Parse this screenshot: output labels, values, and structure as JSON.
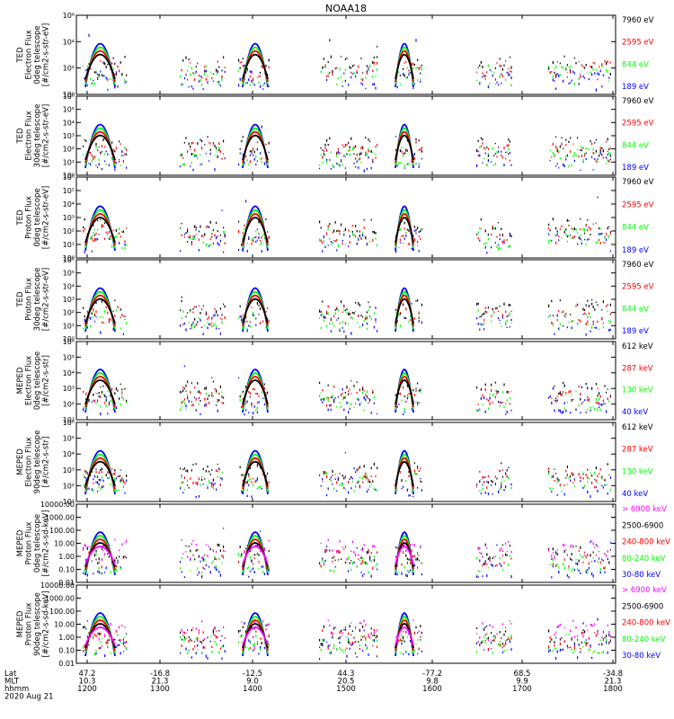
{
  "title": "NOAA18",
  "colors": {
    "blue": "#0000ff",
    "red": "#ff0000",
    "green": "#00ff00",
    "black": "#000000",
    "magenta": "#ff00ff"
  },
  "time_axis": {
    "labels": [
      "Lat",
      "MLT",
      "hhmm",
      "2020 Aug 21"
    ],
    "ticks": [
      {
        "lat": "47.2",
        "mlt": "10.3",
        "hhmm": "1200"
      },
      {
        "lat": "-16.8",
        "mlt": "21.3",
        "hhmm": "1300"
      },
      {
        "lat": "-12.5",
        "mlt": "9.0",
        "hhmm": "1400"
      },
      {
        "lat": "44.3",
        "mlt": "20.5",
        "hhmm": "1500"
      },
      {
        "lat": "-77.2",
        "mlt": "9.8",
        "hhmm": "1600"
      },
      {
        "lat": "68.5",
        "mlt": "9.9",
        "hhmm": "1700"
      },
      {
        "lat": "-34.8",
        "mlt": "21.3",
        "hhmm": "1800"
      }
    ]
  },
  "chart_data": [
    {
      "type": "scatter",
      "ylabel": [
        "TED",
        "Electron Flux",
        "0deg telescope",
        "[#/cm2-s-str-eV]"
      ],
      "yscale": "log",
      "ylim": [
        1,
        1000000.0
      ],
      "ticks": [
        "10⁰",
        "10²",
        "10⁴",
        "10⁶"
      ],
      "legend": [
        {
          "name": "7960 eV",
          "color": "#000000"
        },
        {
          "name": "2595 eV",
          "color": "#ff0000"
        },
        {
          "name": "844 eV",
          "color": "#00ff00"
        },
        {
          "name": "189 eV",
          "color": "#0000ff"
        }
      ]
    },
    {
      "type": "scatter",
      "ylabel": [
        "TED",
        "Electron Flux",
        "30deg telescope",
        "[#/cm2-s-str-eV]"
      ],
      "yscale": "log",
      "ylim": [
        1,
        1000000.0
      ],
      "ticks": [
        "10⁰",
        "10¹",
        "10²",
        "10³",
        "10⁴",
        "10⁵",
        "10⁶"
      ],
      "legend": [
        {
          "name": "7960 eV",
          "color": "#000000"
        },
        {
          "name": "2595 eV",
          "color": "#ff0000"
        },
        {
          "name": "844 eV",
          "color": "#00ff00"
        },
        {
          "name": "189 eV",
          "color": "#0000ff"
        }
      ]
    },
    {
      "type": "scatter",
      "ylabel": [
        "TED",
        "Proton Flux",
        "0deg telescope",
        "[#/cm2-s-str-eV]"
      ],
      "yscale": "log",
      "ylim": [
        1,
        1000000.0
      ],
      "ticks": [
        "10⁰",
        "10¹",
        "10²",
        "10³",
        "10⁴",
        "10⁵",
        "10⁶"
      ],
      "legend": [
        {
          "name": "7960 eV",
          "color": "#000000"
        },
        {
          "name": "2595 eV",
          "color": "#ff0000"
        },
        {
          "name": "844 eV",
          "color": "#00ff00"
        },
        {
          "name": "189 eV",
          "color": "#0000ff"
        }
      ]
    },
    {
      "type": "scatter",
      "ylabel": [
        "TED",
        "Proton Flux",
        "30deg telescope",
        "[#/cm2-s-str-eV]"
      ],
      "yscale": "log",
      "ylim": [
        1,
        1000000.0
      ],
      "ticks": [
        "10⁰",
        "10¹",
        "10²",
        "10³",
        "10⁴",
        "10⁵",
        "10⁶"
      ],
      "legend": [
        {
          "name": "7960 eV",
          "color": "#000000"
        },
        {
          "name": "2595 eV",
          "color": "#ff0000"
        },
        {
          "name": "844 eV",
          "color": "#00ff00"
        },
        {
          "name": "189 eV",
          "color": "#0000ff"
        }
      ]
    },
    {
      "type": "scatter",
      "ylabel": [
        "MEPED",
        "Electron Flux",
        "0deg telescope",
        "[#/cm2-s-str]"
      ],
      "yscale": "log",
      "ylim": [
        10,
        1000000.0
      ],
      "ticks": [
        "10¹",
        "10²",
        "10³",
        "10⁴",
        "10⁵",
        "10⁶"
      ],
      "legend": [
        {
          "name": "612 keV",
          "color": "#000000"
        },
        {
          "name": "287 keV",
          "color": "#ff0000"
        },
        {
          "name": "130 keV",
          "color": "#00ff00"
        },
        {
          "name": "40 keV",
          "color": "#0000ff"
        }
      ]
    },
    {
      "type": "scatter",
      "ylabel": [
        "MEPED",
        "Electron Flux",
        "90deg telescope",
        "[#/cm2-s-str]"
      ],
      "yscale": "log",
      "ylim": [
        10,
        1000000.0
      ],
      "ticks": [
        "10¹",
        "10²",
        "10³",
        "10⁴",
        "10⁵",
        "10⁶"
      ],
      "legend": [
        {
          "name": "612 keV",
          "color": "#000000"
        },
        {
          "name": "287 keV",
          "color": "#ff0000"
        },
        {
          "name": "130 keV",
          "color": "#00ff00"
        },
        {
          "name": "40 keV",
          "color": "#0000ff"
        }
      ]
    },
    {
      "type": "scatter",
      "ylabel": [
        "MEPED",
        "Proton Flux",
        "0deg telescope",
        "[#/cm2-s-sd-keV]"
      ],
      "yscale": "log",
      "ylim": [
        0.01,
        10000
      ],
      "ticks": [
        "0.01",
        "0.10",
        "1.00",
        "10.00",
        "100.00",
        "1000.00",
        "10000.00"
      ],
      "legend": [
        {
          "name": "> 6900 keV",
          "color": "#ff00ff"
        },
        {
          "name": "2500-6900",
          "color": "#000000"
        },
        {
          "name": "240-800 keV",
          "color": "#ff0000"
        },
        {
          "name": "80-240 keV",
          "color": "#00ff00"
        },
        {
          "name": "30-80 keV",
          "color": "#0000ff"
        }
      ]
    },
    {
      "type": "scatter",
      "ylabel": [
        "MEPED",
        "Proton Flux",
        "90deg telescope",
        "[#/cm2-s-sd-keV]"
      ],
      "yscale": "log",
      "ylim": [
        0.01,
        10000
      ],
      "ticks": [
        "0.01",
        "0.10",
        "1.00",
        "10.00",
        "100.00",
        "1000.00",
        "10000.00"
      ],
      "legend": [
        {
          "name": "> 6900 keV",
          "color": "#ff00ff"
        },
        {
          "name": "2500-6900",
          "color": "#000000"
        },
        {
          "name": "240-800 keV",
          "color": "#ff0000"
        },
        {
          "name": "80-240 keV",
          "color": "#00ff00"
        },
        {
          "name": "30-80 keV",
          "color": "#0000ff"
        }
      ]
    }
  ]
}
